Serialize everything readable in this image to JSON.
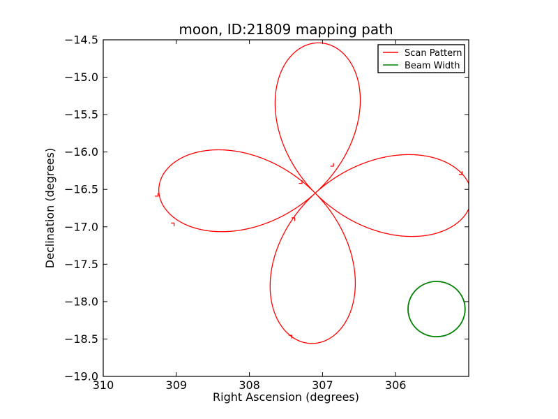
{
  "figure": {
    "title": "moon, ID:21809 mapping path",
    "xlabel": "Right Ascension (degrees)",
    "ylabel": "Declination (degrees)",
    "background_color": "#ffffff",
    "frame_color": "#000000"
  },
  "legend": {
    "entries": [
      {
        "label": "Scan Pattern",
        "color": "#ff0000"
      },
      {
        "label": "Beam Width",
        "color": "#008000"
      }
    ]
  },
  "chart_data": {
    "type": "line",
    "title": "moon, ID:21809 mapping path",
    "xlabel": "Right Ascension (degrees)",
    "ylabel": "Declination (degrees)",
    "grid": false,
    "legend_position": "upper right",
    "x_axis": {
      "range": [
        310,
        305
      ],
      "inverted": true,
      "ticks": [
        310,
        309,
        308,
        307,
        306
      ],
      "tick_labels": [
        "310",
        "309",
        "308",
        "307",
        "306"
      ]
    },
    "y_axis": {
      "range": [
        -14.5,
        -19.0
      ],
      "ticks": [
        -14.5,
        -15.0,
        -15.5,
        -16.0,
        -16.5,
        -17.0,
        -17.5,
        -18.0,
        -18.5,
        -19.0
      ],
      "tick_labels": [
        "−14.5",
        "−15.0",
        "−15.5",
        "−16.0",
        "−16.5",
        "−17.0",
        "−17.5",
        "−18.0",
        "−18.5",
        "−19.0"
      ]
    },
    "series": [
      {
        "name": "Scan Pattern",
        "shape": "rose4",
        "color": "#ff0000",
        "center": {
          "ra": 307.1,
          "dec": -16.55
        },
        "petal_length_deg": {
          "ra": 2.14,
          "dec": 2.01
        },
        "rotation_deg": 1.5,
        "num_petals": 4,
        "petal_directions": [
          "up",
          "down",
          "left",
          "right"
        ],
        "artifacts": [
          {
            "ra": 306.85,
            "dec": -16.19,
            "sx": 1,
            "sy": 1
          },
          {
            "ra": 307.28,
            "dec": -16.42,
            "sx": 1,
            "sy": 1
          },
          {
            "ra": 307.38,
            "dec": -16.88,
            "sx": 1,
            "sy": -1
          },
          {
            "ra": 307.42,
            "dec": -18.45,
            "sx": 1,
            "sy": -1
          },
          {
            "ra": 309.25,
            "dec": -16.59,
            "sx": 1,
            "sy": 1
          },
          {
            "ra": 309.03,
            "dec": -16.95,
            "sx": 1,
            "sy": -1
          },
          {
            "ra": 305.09,
            "dec": -16.3,
            "sx": 1,
            "sy": 1
          }
        ]
      },
      {
        "name": "Beam Width",
        "shape": "circle",
        "color": "#008000",
        "center": {
          "ra": 305.44,
          "dec": -18.1
        },
        "radius_deg": {
          "ra": 0.39,
          "dec": 0.37
        }
      }
    ]
  }
}
